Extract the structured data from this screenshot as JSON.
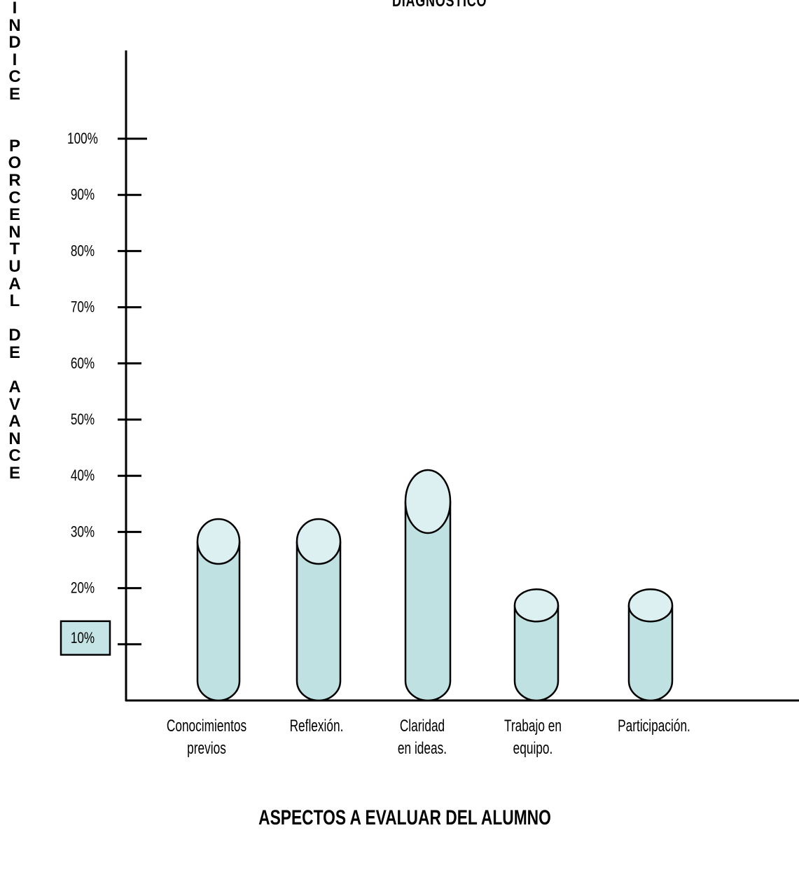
{
  "chart_data": {
    "type": "bar",
    "title": "DIAGNOSTICO",
    "ylabel": "INDICE  PORCENTUAL DE AVANCE",
    "xlabel": "ASPECTOS A EVALUAR DEL ALUMNO",
    "categories": [
      [
        "Conocimientos",
        "previos"
      ],
      [
        "Reflexión."
      ],
      [
        "Claridad",
        "en ideas."
      ],
      [
        "Trabajo en",
        "equipo."
      ],
      [
        "Participación."
      ]
    ],
    "values": [
      30,
      30,
      38,
      18,
      18
    ],
    "yticks": [
      "100%",
      "90%",
      "80%",
      "70%",
      "60%",
      "50%",
      "40%",
      "30%",
      "20%",
      "10%"
    ],
    "ylim": [
      0,
      110
    ],
    "highlighted_tick": "10%",
    "bar_style": "cylinder",
    "colors": {
      "bar_fill": "#bfe1e2",
      "bar_top": "#dcf0f1",
      "highlight_box": "#c4e4e5",
      "axis": "#000000"
    }
  }
}
